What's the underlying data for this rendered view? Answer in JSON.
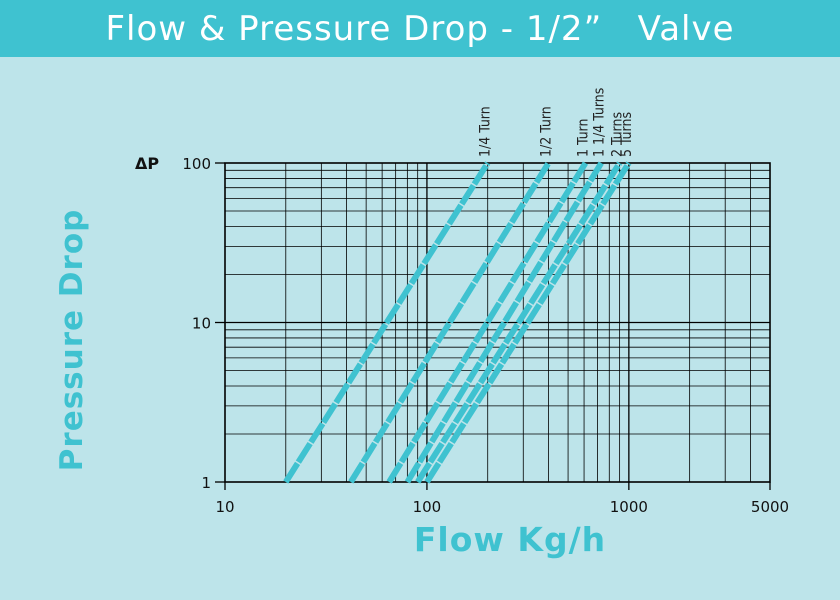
{
  "banner": {
    "title": "Flow & Pressure Drop - 1/2”   Valve"
  },
  "colors": {
    "banner": "#3fc2d0",
    "background": "#bde4ea",
    "series": "#3fc2d0",
    "grid": "#000000"
  },
  "chart_data": {
    "type": "line",
    "title": "Flow & Pressure Drop - 1/2”   Valve",
    "xlabel": "Flow Kg/h",
    "ylabel": "Pressure Drop",
    "y_axis_symbol": "ΔP",
    "x_scale": "log",
    "y_scale": "log",
    "xlim": [
      10,
      5000
    ],
    "ylim": [
      1,
      100
    ],
    "x_ticks": [
      "10",
      "100",
      "1000",
      "5000"
    ],
    "y_ticks": [
      "1",
      "10",
      "100"
    ],
    "grid": true,
    "series": [
      {
        "name": "1/4 Turn",
        "x": [
          20,
          200
        ],
        "y": [
          1,
          100
        ]
      },
      {
        "name": "1/2 Turn",
        "x": [
          42,
          400
        ],
        "y": [
          1,
          100
        ]
      },
      {
        "name": "1 Turn",
        "x": [
          65,
          610
        ],
        "y": [
          1,
          100
        ]
      },
      {
        "name": "1 1/4 Turns",
        "x": [
          80,
          730
        ],
        "y": [
          1,
          100
        ]
      },
      {
        "name": "2 Turns",
        "x": [
          90,
          900
        ],
        "y": [
          1,
          100
        ]
      },
      {
        "name": "5 Turns",
        "x": [
          100,
          1000
        ],
        "y": [
          1,
          100
        ]
      }
    ]
  }
}
